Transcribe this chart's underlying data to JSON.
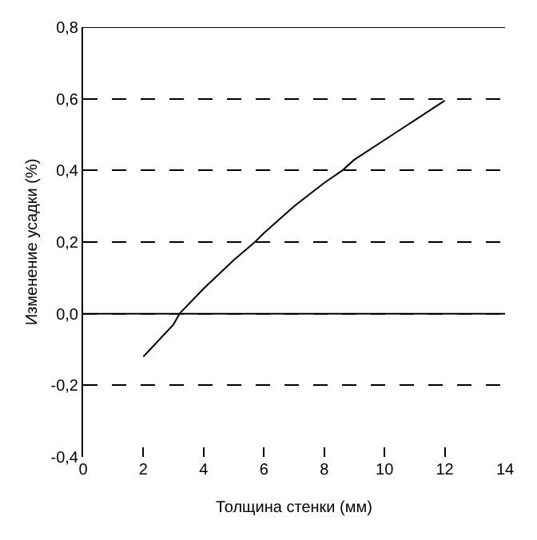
{
  "chart_data": {
    "type": "line",
    "xlabel": "Толщина стенки (мм)",
    "ylabel": "Изменение усадки (%)",
    "x": [
      2,
      3,
      3.2,
      4,
      5,
      5.7,
      6,
      7,
      8,
      8.6,
      9,
      10,
      11,
      12
    ],
    "series": [
      {
        "color": "#000000",
        "values": [
          -0.12,
          -0.03,
          0.0,
          0.07,
          0.15,
          0.2,
          0.225,
          0.3,
          0.365,
          0.4,
          0.43,
          0.485,
          0.54,
          0.595
        ]
      }
    ],
    "xlim": [
      0,
      14
    ],
    "xticks": [
      0,
      2,
      4,
      6,
      8,
      10,
      12,
      14
    ],
    "ylim": [
      -0.4,
      0.8
    ],
    "yticks": [
      {
        "value": -0.4,
        "label": "-0,4"
      },
      {
        "value": -0.2,
        "label": "-0,2"
      },
      {
        "value": 0.0,
        "label": "0,0"
      },
      {
        "value": 0.2,
        "label": "0,2"
      },
      {
        "value": 0.4,
        "label": "0,4"
      },
      {
        "value": 0.6,
        "label": "0,6"
      },
      {
        "value": 0.8,
        "label": "0,8"
      }
    ],
    "grid": "y",
    "line_style": "solid",
    "marker": "none",
    "legend": false,
    "ref_lines": [
      {
        "axis": "y",
        "value": 0.0,
        "line_style": "solid",
        "color": "#000000"
      }
    ]
  }
}
